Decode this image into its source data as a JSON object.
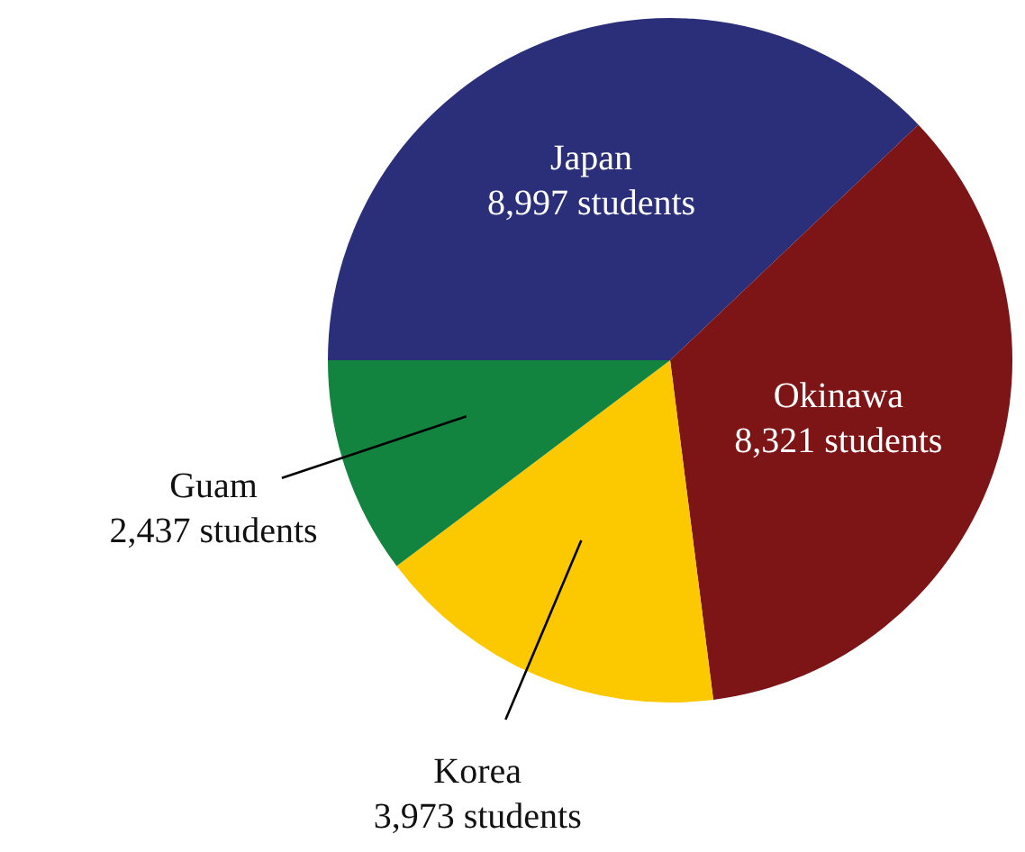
{
  "chart_data": {
    "type": "pie",
    "categories": [
      "Japan",
      "Okinawa",
      "Korea",
      "Guam"
    ],
    "values": [
      8997,
      8321,
      3973,
      2437
    ],
    "value_labels": [
      "8,997 students",
      "8,321 students",
      "3,973 students",
      "2,437 students"
    ],
    "colors": [
      "#2b2f7a",
      "#7d1416",
      "#fcc900",
      "#13843f"
    ]
  }
}
